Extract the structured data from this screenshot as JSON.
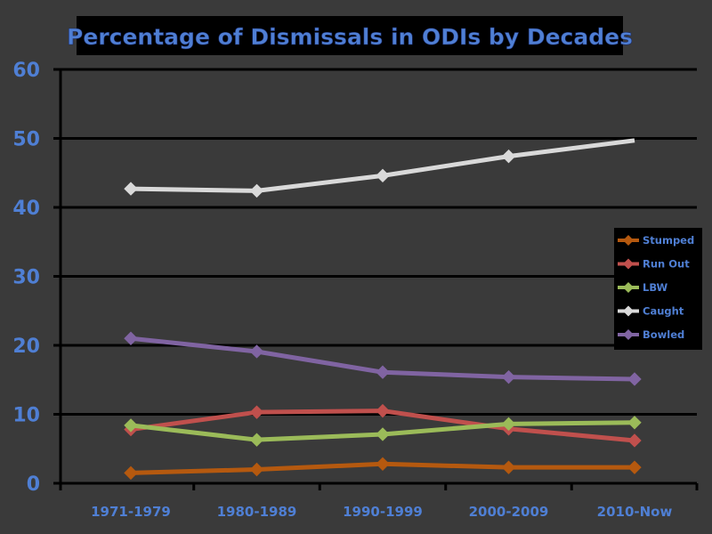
{
  "chart_data": {
    "type": "line",
    "title": "Percentage of Dismissals in ODIs by Decades",
    "xlabel": "",
    "ylabel": "",
    "categories": [
      "1971-1979",
      "1980-1989",
      "1990-1999",
      "2000-2009",
      "2010-Now"
    ],
    "ylim": [
      0,
      60
    ],
    "yticks": [
      0,
      10,
      20,
      30,
      40,
      50,
      60
    ],
    "grid": "horizontal",
    "legend_position": "right",
    "series": [
      {
        "name": "Stumped",
        "color": "#b5590f",
        "values": [
          1.5,
          2.0,
          2.8,
          2.3,
          2.3
        ]
      },
      {
        "name": "Run Out",
        "color": "#c0504d",
        "values": [
          7.8,
          10.3,
          10.5,
          7.9,
          6.2
        ]
      },
      {
        "name": "LBW",
        "color": "#9bbb59",
        "values": [
          8.4,
          6.3,
          7.1,
          8.6,
          8.8
        ]
      },
      {
        "name": "Caught",
        "color": "#d9d9d9",
        "values": [
          42.7,
          42.4,
          44.6,
          47.4,
          49.7
        ]
      },
      {
        "name": "Bowled",
        "color": "#8064a2",
        "values": [
          21.0,
          19.1,
          16.1,
          15.4,
          15.1
        ]
      }
    ]
  }
}
